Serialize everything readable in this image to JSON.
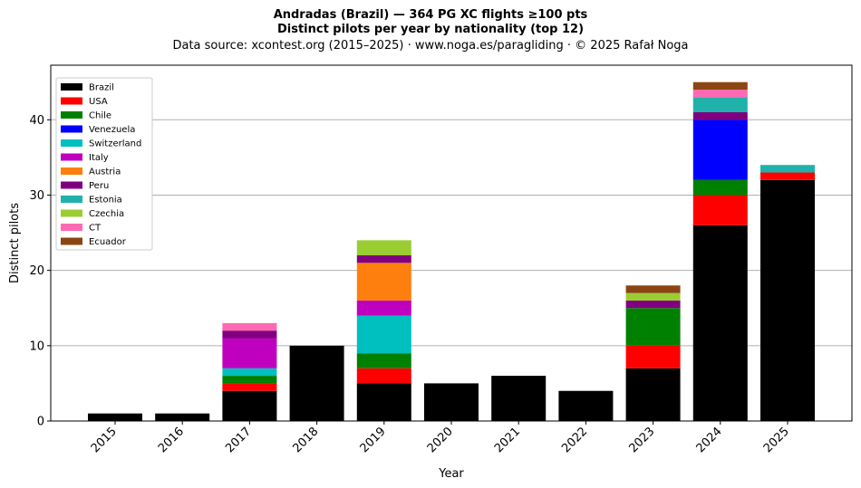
{
  "header": {
    "title": "Andradas (Brazil)  —  364 PG XC flights ≥100 pts",
    "subtitle": "Distinct pilots per year by nationality (top 12)",
    "source": "Data source: xcontest.org (2015–2025)  ·  www.noga.es/paragliding  ·  © 2025 Rafał Noga"
  },
  "chart_data": {
    "type": "bar",
    "stacked": true,
    "title": "Andradas (Brazil)  —  364 PG XC flights ≥100 pts",
    "subtitle": "Distinct pilots per year by nationality (top 12)",
    "xlabel": "Year",
    "ylabel": "Distinct pilots",
    "ylim": [
      0,
      47.25
    ],
    "yticks": [
      0,
      10,
      20,
      30,
      40
    ],
    "grid": "y",
    "legend_position": "top-left",
    "categories": [
      "2015",
      "2016",
      "2017",
      "2018",
      "2019",
      "2020",
      "2021",
      "2022",
      "2023",
      "2024",
      "2025"
    ],
    "series": [
      {
        "name": "Brazil",
        "color": "#000000",
        "values": [
          1,
          1,
          4,
          10,
          5,
          5,
          6,
          4,
          7,
          26,
          32
        ]
      },
      {
        "name": "USA",
        "color": "#ff0000",
        "values": [
          0,
          0,
          1,
          0,
          2,
          0,
          0,
          0,
          3,
          4,
          1
        ]
      },
      {
        "name": "Chile",
        "color": "#008000",
        "values": [
          0,
          0,
          1,
          0,
          2,
          0,
          0,
          0,
          5,
          2,
          0
        ]
      },
      {
        "name": "Venezuela",
        "color": "#0000ff",
        "values": [
          0,
          0,
          0,
          0,
          0,
          0,
          0,
          0,
          0,
          8,
          0
        ]
      },
      {
        "name": "Switzerland",
        "color": "#00bfbf",
        "values": [
          0,
          0,
          1,
          0,
          5,
          0,
          0,
          0,
          0,
          0,
          0
        ]
      },
      {
        "name": "Italy",
        "color": "#bf00bf",
        "values": [
          0,
          0,
          4,
          0,
          2,
          0,
          0,
          0,
          0,
          0,
          0
        ]
      },
      {
        "name": "Austria",
        "color": "#ff7f0e",
        "values": [
          0,
          0,
          0,
          0,
          5,
          0,
          0,
          0,
          0,
          0,
          0
        ]
      },
      {
        "name": "Peru",
        "color": "#800080",
        "values": [
          0,
          0,
          1,
          0,
          1,
          0,
          0,
          0,
          1,
          1,
          0
        ]
      },
      {
        "name": "Estonia",
        "color": "#20b2aa",
        "values": [
          0,
          0,
          0,
          0,
          0,
          0,
          0,
          0,
          0,
          2,
          1
        ]
      },
      {
        "name": "Czechia",
        "color": "#9acd32",
        "values": [
          0,
          0,
          0,
          0,
          2,
          0,
          0,
          0,
          1,
          0,
          0
        ]
      },
      {
        "name": "CT",
        "color": "#ff69b4",
        "values": [
          0,
          0,
          1,
          0,
          0,
          0,
          0,
          0,
          0,
          1,
          0
        ]
      },
      {
        "name": "Ecuador",
        "color": "#8b4513",
        "values": [
          0,
          0,
          0,
          0,
          0,
          0,
          0,
          0,
          1,
          1,
          0
        ]
      }
    ]
  }
}
